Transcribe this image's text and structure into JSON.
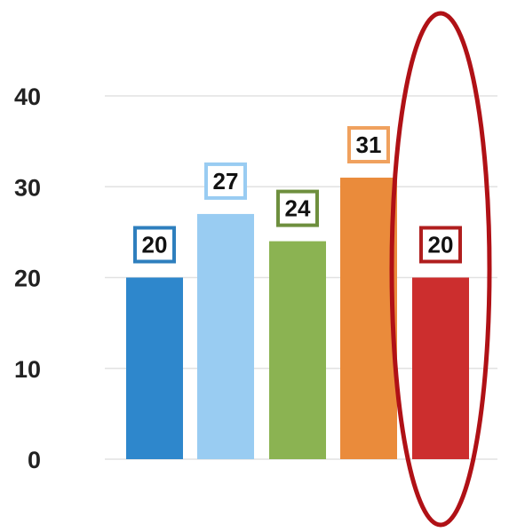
{
  "chart_data": {
    "type": "bar",
    "title": "",
    "xlabel": "",
    "ylabel": "",
    "categories": [
      "",
      "",
      "",
      "",
      ""
    ],
    "values": [
      20,
      27,
      24,
      31,
      20
    ],
    "data_labels": [
      "20",
      "27",
      "24",
      "31",
      "20"
    ],
    "yticks": [
      "0",
      "10",
      "20",
      "30",
      "40"
    ],
    "ylim": [
      0,
      40
    ],
    "grid": true,
    "legend": "none",
    "bar_colors": [
      "#2e87cc",
      "#99ccf2",
      "#8bb352",
      "#ea8b3b",
      "#cc2e2e"
    ],
    "label_border_colors": [
      "#2e7fbe",
      "#99ccf2",
      "#6e8f3e",
      "#f0a15e",
      "#b01e1e"
    ],
    "highlight": {
      "index": 4,
      "shape": "ellipse",
      "color": "#b01116"
    }
  }
}
